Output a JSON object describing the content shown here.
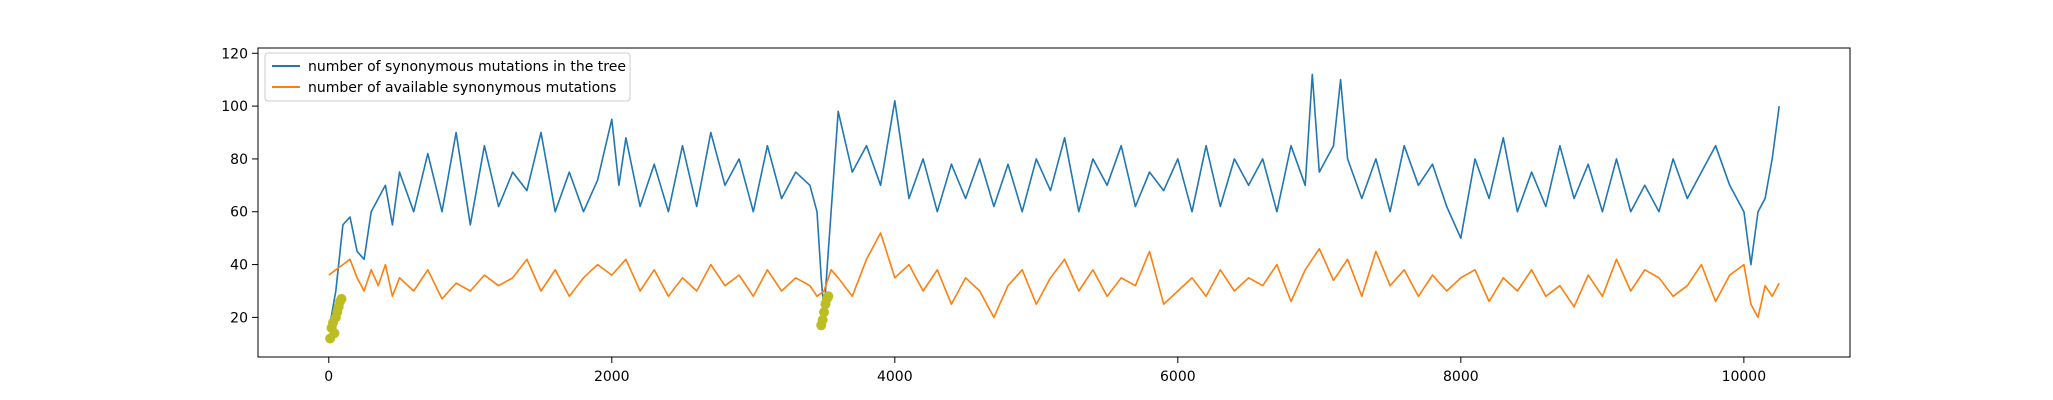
{
  "chart_data": {
    "type": "line",
    "title": "",
    "xlabel": "",
    "ylabel": "",
    "xlim": [
      -500,
      10750
    ],
    "ylim": [
      5,
      122
    ],
    "x_ticks": [
      0,
      2000,
      4000,
      6000,
      8000,
      10000
    ],
    "y_ticks": [
      20,
      40,
      60,
      80,
      100,
      120
    ],
    "grid": false,
    "legend_position": "top-left",
    "series": [
      {
        "name": "number of synonymous mutations in the tree",
        "color": "#1f77b4",
        "x": [
          0,
          50,
          100,
          150,
          200,
          250,
          300,
          350,
          400,
          450,
          500,
          600,
          700,
          800,
          900,
          1000,
          1100,
          1200,
          1300,
          1400,
          1500,
          1600,
          1700,
          1800,
          1900,
          2000,
          2050,
          2100,
          2200,
          2300,
          2400,
          2500,
          2600,
          2700,
          2800,
          2900,
          3000,
          3100,
          3200,
          3300,
          3400,
          3450,
          3480,
          3500,
          3550,
          3600,
          3700,
          3800,
          3900,
          4000,
          4100,
          4200,
          4300,
          4400,
          4500,
          4600,
          4700,
          4800,
          4900,
          5000,
          5100,
          5200,
          5300,
          5400,
          5500,
          5600,
          5700,
          5800,
          5900,
          6000,
          6100,
          6200,
          6300,
          6400,
          6500,
          6600,
          6700,
          6800,
          6900,
          6950,
          7000,
          7100,
          7150,
          7200,
          7300,
          7400,
          7500,
          7600,
          7700,
          7800,
          7900,
          8000,
          8100,
          8200,
          8300,
          8400,
          8500,
          8600,
          8700,
          8800,
          8900,
          9000,
          9100,
          9200,
          9300,
          9400,
          9500,
          9600,
          9700,
          9800,
          9900,
          10000,
          10050,
          10100,
          10150,
          10200,
          10250
        ],
        "y": [
          15,
          30,
          55,
          58,
          45,
          42,
          60,
          65,
          70,
          55,
          75,
          60,
          82,
          60,
          90,
          55,
          85,
          62,
          75,
          68,
          90,
          60,
          75,
          60,
          72,
          95,
          70,
          88,
          62,
          78,
          60,
          85,
          62,
          90,
          70,
          80,
          60,
          85,
          65,
          75,
          70,
          60,
          35,
          22,
          60,
          98,
          75,
          85,
          70,
          102,
          65,
          80,
          60,
          78,
          65,
          80,
          62,
          78,
          60,
          80,
          68,
          88,
          60,
          80,
          70,
          85,
          62,
          75,
          68,
          80,
          60,
          85,
          62,
          80,
          70,
          80,
          60,
          85,
          70,
          112,
          75,
          85,
          110,
          80,
          65,
          80,
          60,
          85,
          70,
          78,
          62,
          50,
          80,
          65,
          88,
          60,
          75,
          62,
          85,
          65,
          78,
          60,
          80,
          60,
          70,
          60,
          80,
          65,
          75,
          85,
          70,
          60,
          40,
          60,
          65,
          80,
          100
        ]
      },
      {
        "name": "number of available synonymous mutations",
        "color": "#ff7f0e",
        "x": [
          0,
          50,
          100,
          150,
          200,
          250,
          300,
          350,
          400,
          450,
          500,
          600,
          700,
          800,
          900,
          1000,
          1100,
          1200,
          1300,
          1400,
          1500,
          1600,
          1700,
          1800,
          1900,
          2000,
          2100,
          2200,
          2300,
          2400,
          2500,
          2600,
          2700,
          2800,
          2900,
          3000,
          3100,
          3200,
          3300,
          3400,
          3450,
          3500,
          3550,
          3600,
          3700,
          3800,
          3900,
          4000,
          4100,
          4200,
          4300,
          4400,
          4500,
          4600,
          4700,
          4800,
          4900,
          5000,
          5100,
          5200,
          5300,
          5400,
          5500,
          5600,
          5700,
          5800,
          5900,
          6000,
          6100,
          6200,
          6300,
          6400,
          6500,
          6600,
          6700,
          6800,
          6900,
          7000,
          7100,
          7200,
          7300,
          7400,
          7500,
          7600,
          7700,
          7800,
          7900,
          8000,
          8100,
          8200,
          8300,
          8400,
          8500,
          8600,
          8700,
          8800,
          8900,
          9000,
          9100,
          9200,
          9300,
          9400,
          9500,
          9600,
          9700,
          9800,
          9900,
          10000,
          10050,
          10100,
          10150,
          10200,
          10250
        ],
        "y": [
          36,
          38,
          40,
          42,
          35,
          30,
          38,
          32,
          40,
          28,
          35,
          30,
          38,
          27,
          33,
          30,
          36,
          32,
          35,
          42,
          30,
          38,
          28,
          35,
          40,
          36,
          42,
          30,
          38,
          28,
          35,
          30,
          40,
          32,
          36,
          28,
          38,
          30,
          35,
          32,
          28,
          30,
          38,
          35,
          28,
          42,
          52,
          35,
          40,
          30,
          38,
          25,
          35,
          30,
          20,
          32,
          38,
          25,
          35,
          42,
          30,
          38,
          28,
          35,
          32,
          45,
          25,
          30,
          35,
          28,
          38,
          30,
          35,
          32,
          40,
          26,
          38,
          46,
          34,
          42,
          28,
          45,
          32,
          38,
          28,
          36,
          30,
          35,
          38,
          26,
          35,
          30,
          38,
          28,
          32,
          24,
          36,
          28,
          42,
          30,
          38,
          35,
          28,
          32,
          40,
          26,
          36,
          40,
          25,
          20,
          32,
          28,
          33
        ]
      }
    ],
    "annotations": [
      {
        "kind": "scatter-markers",
        "color": "#bcbd22",
        "x": [
          10,
          20,
          30,
          40,
          50,
          60,
          70,
          80,
          90
        ],
        "y": [
          12,
          16,
          18,
          14,
          20,
          22,
          24,
          26,
          27
        ]
      },
      {
        "kind": "scatter-markers",
        "color": "#bcbd22",
        "x": [
          3480,
          3490,
          3500,
          3510,
          3520,
          3530
        ],
        "y": [
          17,
          19,
          22,
          25,
          27,
          28
        ]
      }
    ]
  }
}
